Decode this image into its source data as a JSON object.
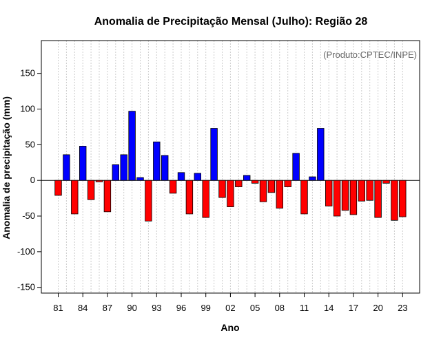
{
  "chart_data": {
    "type": "bar",
    "title": "Anomalia de Precipitação Mensal (Julho): Região 28",
    "xlabel": "Ano",
    "ylabel": "Anomalia de precipitação (mm)",
    "watermark": "(Produto:CPTEC/INPE)",
    "ylim": [
      -158,
      196
    ],
    "yticks": [
      -150,
      -100,
      -50,
      0,
      50,
      100,
      150
    ],
    "grid": "vertical dotted",
    "positive_color": "#0000ff",
    "negative_color": "#ff0000",
    "categories": [
      "1981",
      "1982",
      "1983",
      "1984",
      "1985",
      "1986",
      "1987",
      "1988",
      "1989",
      "1990",
      "1991",
      "1992",
      "1993",
      "1994",
      "1995",
      "1996",
      "1997",
      "1998",
      "1999",
      "2000",
      "2001",
      "2002",
      "2003",
      "2004",
      "2005",
      "2006",
      "2007",
      "2008",
      "2009",
      "2010",
      "2011",
      "2012",
      "2013",
      "2014",
      "2015",
      "2016",
      "2017",
      "2018",
      "2019",
      "2020",
      "2021",
      "2022",
      "2023"
    ],
    "xtick_labels": [
      "81",
      "84",
      "87",
      "90",
      "93",
      "96",
      "99",
      "02",
      "05",
      "08",
      "11",
      "14",
      "17",
      "20",
      "23"
    ],
    "values": [
      -21,
      36,
      -47,
      48,
      -27,
      -2,
      -44,
      22,
      36,
      97,
      4,
      -57,
      54,
      35,
      -18,
      11,
      -47,
      10,
      -52,
      73,
      -24,
      -37,
      -9,
      7,
      -4,
      -30,
      -17,
      -39,
      -9,
      38,
      -47,
      5,
      73,
      -36,
      -50,
      -42,
      -48,
      -29,
      -28,
      -52,
      -4,
      -56,
      -51
    ]
  }
}
